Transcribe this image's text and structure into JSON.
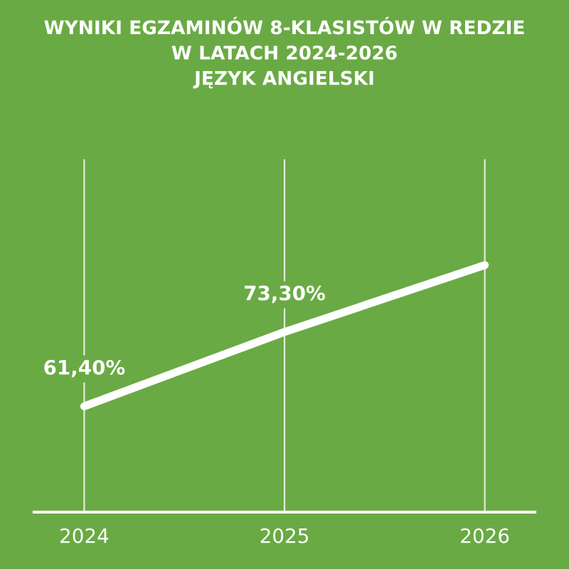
{
  "chart_data": {
    "type": "line",
    "title": "WYNIKI EGZAMINÓW 8-KLASISTÓW W REDZIE\nW LATACH 2024-2026\nJĘZYK ANGIELSKI",
    "categories": [
      "2024",
      "2025",
      "2026"
    ],
    "series": [
      {
        "color": "#ffffff",
        "values": [
          61.4,
          73.3,
          84.0
        ],
        "value_labels": [
          "61,40%",
          "73,30%",
          null
        ]
      }
    ],
    "grid": "x",
    "legend": false,
    "marker": "none",
    "line_style": "solid"
  }
}
